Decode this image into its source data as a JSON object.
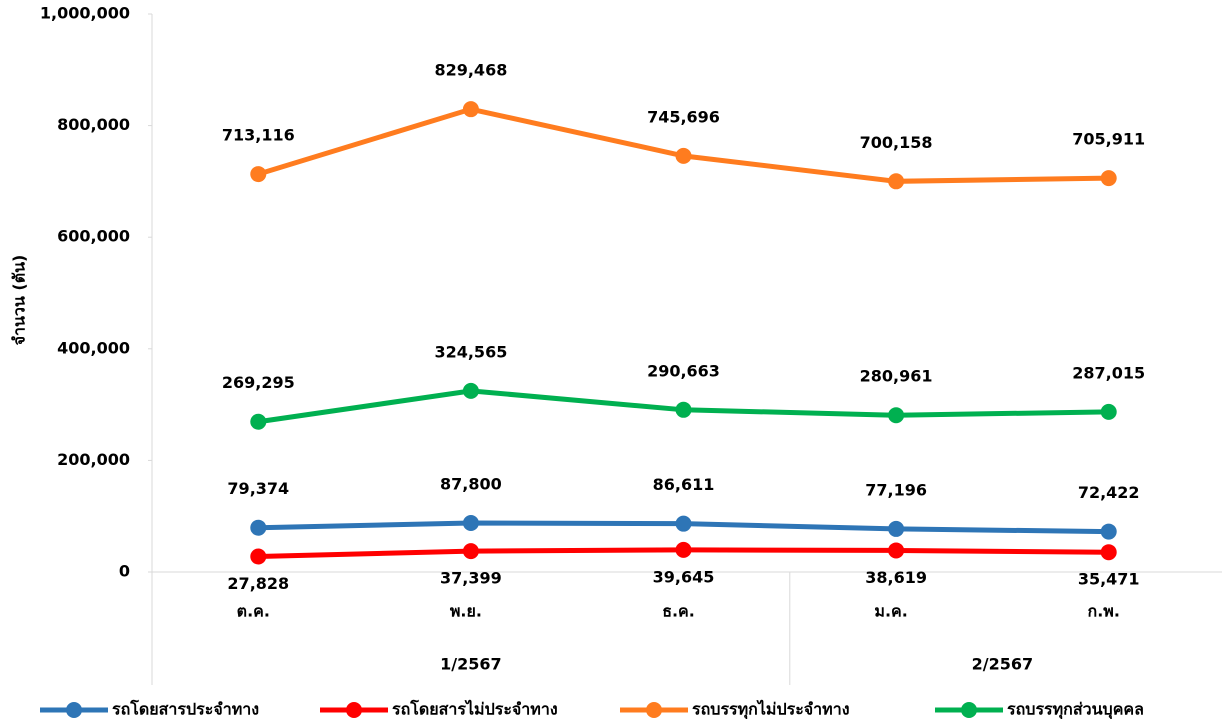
{
  "chart_data": {
    "type": "line",
    "y_label": "จำนวน (ตัน)",
    "categories": [
      "ต.ค.",
      "พ.ย.",
      "ธ.ค.",
      "ม.ค.",
      "ก.พ."
    ],
    "groups": [
      {
        "label": "1/2567",
        "count": 3
      },
      {
        "label": "2/2567",
        "count": 2
      }
    ],
    "ylim": [
      0,
      1000000
    ],
    "yticks": [
      0,
      {
        "value": 200000,
        "label": "200,000"
      },
      {
        "value": 400000,
        "label": "400,000"
      },
      {
        "value": 600000,
        "label": "600,000"
      },
      {
        "value": 800000,
        "label": "800,000"
      },
      {
        "value": 1000000,
        "label": "1,000,000"
      }
    ],
    "grid": false,
    "legend": "bottom",
    "series": [
      {
        "name": "รถโดยสารประจำทาง",
        "color": "#2e75b6",
        "values": [
          79374,
          87800,
          86611,
          77196,
          72422
        ],
        "value_labels": [
          "79,374",
          "87,800",
          "86,611",
          "77,196",
          "72,422"
        ]
      },
      {
        "name": "รถโดยสารไม่ประจำทาง",
        "color": "#ff0000",
        "values": [
          27828,
          37399,
          39645,
          38619,
          35471
        ],
        "value_labels": [
          "27,828",
          "37,399",
          "39,645",
          "38,619",
          "35,471"
        ]
      },
      {
        "name": "รถบรรทุกไม่ประจำทาง",
        "color": "#ff7c1f",
        "values": [
          713116,
          829468,
          745696,
          700158,
          705911
        ],
        "value_labels": [
          "713,116",
          "829,468",
          "745,696",
          "700,158",
          "705,911"
        ]
      },
      {
        "name": "รถบรรทุกส่วนบุคคล",
        "color": "#00b050",
        "values": [
          269295,
          324565,
          290663,
          280961,
          287015
        ],
        "value_labels": [
          "269,295",
          "324,565",
          "290,663",
          "280,961",
          "287,015"
        ]
      }
    ]
  }
}
